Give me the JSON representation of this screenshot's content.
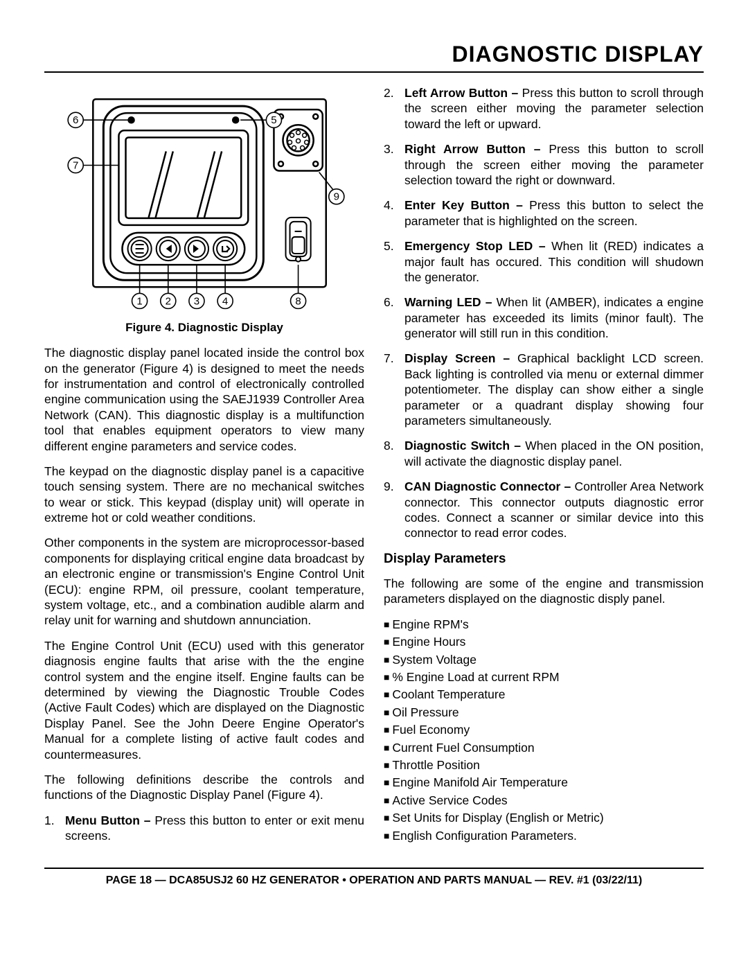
{
  "header": {
    "title": "DIAGNOSTIC DISPLAY"
  },
  "figure": {
    "caption": "Figure 4. Diagnostic Display",
    "callouts": {
      "c1": "1",
      "c2": "2",
      "c3": "3",
      "c4": "4",
      "c5": "5",
      "c6": "6",
      "c7": "7",
      "c8": "8",
      "c9": "9"
    },
    "style": {
      "stroke": "#000000",
      "stroke_width_outer": 3,
      "stroke_width_inner": 2,
      "fill_bg": "#ffffff"
    }
  },
  "left": {
    "p1": "The diagnostic display panel located inside the control box on the generator (Figure 4) is designed  to meet the needs for instrumentation and control of electronically controlled engine communication using the SAEJ1939 Controller Area Network (CAN).  This diagnostic display is a multifunction tool that enables equipment operators to view many different engine parameters and service codes.",
    "p2": "The keypad on the diagnostic display panel is a capacitive touch sensing system. There are no mechanical switches to wear or stick. This keypad (display unit) will operate in extreme hot or cold weather conditions.",
    "p3": "Other components in the system are microprocessor-based components for displaying critical engine data broadcast by an electronic engine or transmission's Engine Control Unit (ECU): engine RPM, oil pressure, coolant temperature, system voltage, etc., and a combination audible alarm and relay unit for warning and shutdown annunciation.",
    "p4": "The Engine Control Unit (ECU) used with this generator diagnosis engine faults that arise with the the engine control system and the engine itself. Engine faults can be determined by viewing the Diagnostic Trouble Codes (Active Fault Codes) which are displayed on the Diagnostic Display Panel. See the John Deere Engine Operator's Manual for a complete listing of active fault codes and countermeasures.",
    "p5": "The following definitions describe the controls and functions of the Diagnostic Display Panel (Figure 4).",
    "item1_num": "1.",
    "item1_term": "Menu Button – ",
    "item1_body": "Press this button to enter or exit menu screens."
  },
  "right": {
    "items": [
      {
        "num": "2.",
        "term": "Left Arrow Button – ",
        "body": "Press this button to scroll through the screen either moving the parameter selection toward the left or upward."
      },
      {
        "num": "3.",
        "term": "Right Arrow Button – ",
        "body": "Press this button to scroll through the screen either moving the parameter selection toward the right or downward."
      },
      {
        "num": "4.",
        "term": "Enter Key Button – ",
        "body": "Press this button to select the parameter that is highlighted on the screen."
      },
      {
        "num": "5.",
        "term": "Emergency Stop LED – ",
        "body": "When lit (RED) indicates a major fault has occured. This condition will shudown the generator."
      },
      {
        "num": "6.",
        "term": "Warning LED – ",
        "body": "When lit (AMBER), indicates a engine parameter has exceeded its limits (minor fault). The generator will still run in this condition."
      },
      {
        "num": "7.",
        "term": "Display Screen – ",
        "body": "Graphical backlight LCD screen. Back lighting is controlled via menu or external dimmer potentiometer. The display can show either a single parameter or a quadrant display showing four parameters simultaneously."
      },
      {
        "num": "8.",
        "term": "Diagnostic Switch – ",
        "body": "When placed in the ON position, will activate the diagnostic display panel."
      },
      {
        "num": "9.",
        "term": "CAN Diagnostic Connector – ",
        "body": "Controller Area Network connector. This connector outputs diagnostic error codes. Connect a scanner or similar device into this connector to read error codes."
      }
    ],
    "subhead": "Display Parameters",
    "subpara": "The following are some of the engine and transmission parameters displayed on the diagnostic disply panel.",
    "bullets": [
      "Engine RPM's",
      "Engine Hours",
      "System Voltage",
      "% Engine Load at current RPM",
      "Coolant Temperature",
      "Oil Pressure",
      "Fuel Economy",
      "Current Fuel Consumption",
      "Throttle Position",
      "Engine Manifold Air Temperature",
      "Active Service Codes",
      "Set Units for Display (English or Metric)",
      "English Configuration Parameters."
    ]
  },
  "footer": {
    "text": "PAGE 18 — DCA85USJ2 60 HZ GENERATOR • OPERATION AND PARTS MANUAL — REV. #1 (03/22/11)"
  }
}
